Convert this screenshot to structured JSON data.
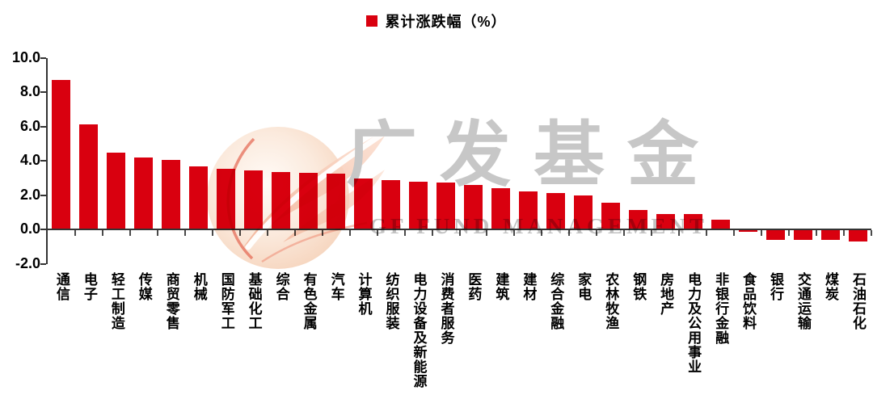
{
  "legend": {
    "label": "累计涨跌幅（%）"
  },
  "watermark": {
    "cn": "广发基金",
    "en": "GF FUND MANAGEMENT"
  },
  "colors": {
    "bar": "#D9000F",
    "axis": "#333333",
    "text": "#000000",
    "watermark_gray": "#C7C7C7"
  },
  "chart_data": {
    "type": "bar",
    "title": "",
    "series_name": "累计涨跌幅（%）",
    "categories": [
      "通信",
      "电子",
      "轻工制造",
      "传媒",
      "商贸零售",
      "机械",
      "国防军工",
      "基础化工",
      "综合",
      "有色金属",
      "汽车",
      "计算机",
      "纺织服装",
      "电力设备及新能源",
      "消费者服务",
      "医药",
      "建筑",
      "建材",
      "综合金融",
      "家电",
      "农林牧渔",
      "钢铁",
      "房地产",
      "电力及公用事业",
      "非银行金融",
      "食品饮料",
      "银行",
      "交通运输",
      "煤炭",
      "石油石化"
    ],
    "values": [
      8.7,
      6.1,
      4.45,
      4.2,
      4.05,
      3.65,
      3.55,
      3.45,
      3.35,
      3.3,
      3.25,
      2.95,
      2.85,
      2.8,
      2.75,
      2.6,
      2.4,
      2.2,
      2.1,
      2.0,
      1.55,
      1.15,
      0.9,
      0.9,
      0.55,
      -0.1,
      -0.55,
      -0.55,
      -0.55,
      -0.65
    ],
    "ylabel": "",
    "xlabel": "",
    "ylim": [
      -2.0,
      10.0
    ],
    "yticks": [
      10.0,
      8.0,
      6.0,
      4.0,
      2.0,
      0.0,
      -2.0
    ],
    "ytick_decimals": 1,
    "grid": false,
    "legend_position": "top-center",
    "bar_color": "#D9000F"
  }
}
